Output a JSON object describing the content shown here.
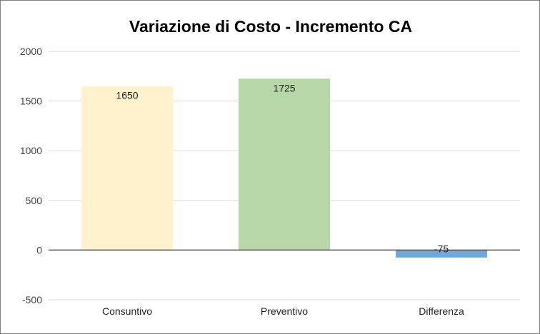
{
  "chart_data": {
    "type": "bar",
    "title": "Variazione di Costo - Incremento CA",
    "xlabel": "",
    "ylabel": "",
    "categories": [
      "Consuntivo",
      "Preventivo",
      "Differenza"
    ],
    "values": [
      1650,
      1725,
      -75
    ],
    "data_labels": [
      "1650",
      "1725",
      "-75"
    ],
    "colors": [
      "#fff2cc",
      "#b6d7a8",
      "#6fa8dc"
    ],
    "ylim": [
      -500,
      2000
    ],
    "yticks": [
      2000,
      1500,
      1000,
      500,
      0,
      -500
    ],
    "grid": true,
    "legend": "none"
  }
}
